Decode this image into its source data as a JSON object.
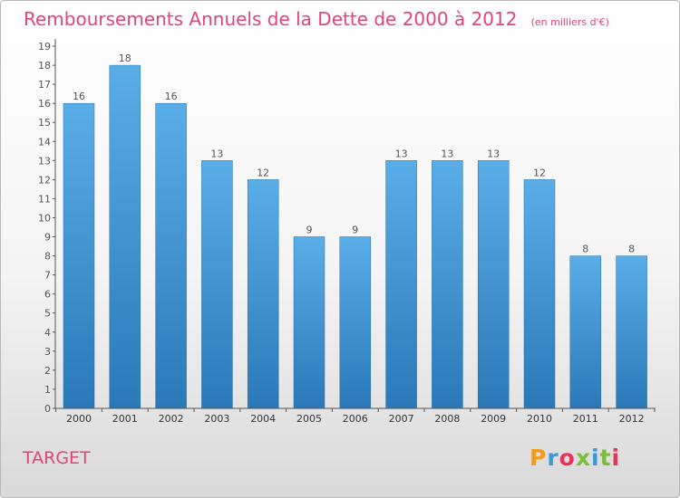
{
  "chart_data": {
    "type": "bar",
    "title": "Remboursements Annuels de la Dette de 2000 à 2012",
    "subtitle": "(en milliers d'€)",
    "categories": [
      "2000",
      "2001",
      "2002",
      "2003",
      "2004",
      "2005",
      "2006",
      "2007",
      "2008",
      "2009",
      "2010",
      "2011",
      "2012"
    ],
    "values": [
      16,
      18,
      16,
      13,
      12,
      9,
      9,
      13,
      13,
      13,
      12,
      8,
      8
    ],
    "data_labels": [
      "16",
      "18",
      "16",
      "13",
      "12",
      "9",
      "9",
      "13",
      "13",
      "13",
      "12",
      "8",
      "8"
    ],
    "yticks": [
      "0",
      "1",
      "2",
      "3",
      "4",
      "5",
      "6",
      "7",
      "8",
      "9",
      "10",
      "11",
      "12",
      "13",
      "14",
      "15",
      "16",
      "17",
      "18",
      "19"
    ],
    "ylim": [
      0,
      19
    ],
    "grid": false,
    "bar_color": "#3b8fd4"
  },
  "footer": {
    "location": "TARGET",
    "logo_text": "Proxiti",
    "logo_colors": [
      "#f29a1f",
      "#3a9ad9",
      "#e8335d",
      "#7cbd3a",
      "#3a9ad9",
      "#7cbd3a",
      "#e8335d"
    ]
  },
  "colors": {
    "title": "#e0457a",
    "axis": "#555555"
  }
}
